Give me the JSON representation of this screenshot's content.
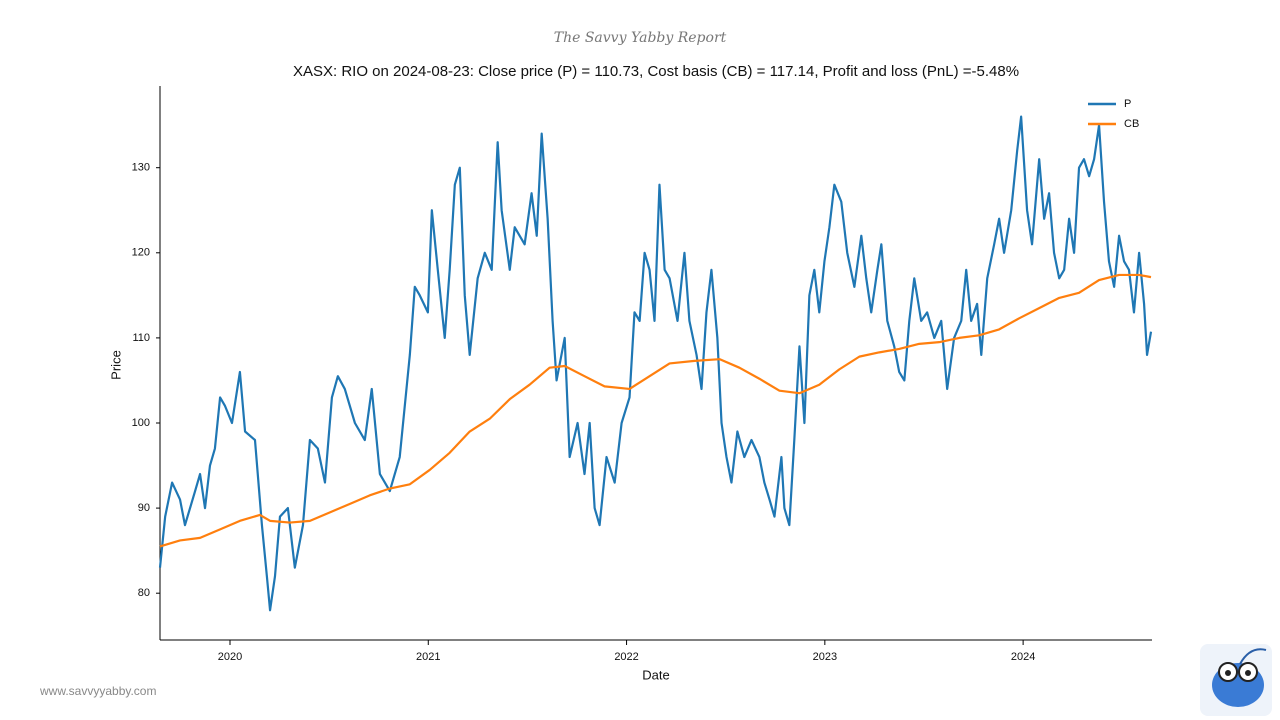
{
  "header": "The Savvy Yabby Report",
  "footer": "www.savvyyabby.com",
  "chart_data": {
    "type": "line",
    "title": "XASX: RIO on 2024-08-23: Close price (P) = 110.73, Cost basis (CB) = 117.14, Profit and loss (PnL) =-5.48%",
    "x_label": "Date",
    "y_label": "Price",
    "xlim": [
      2019.647,
      2024.65
    ],
    "ylim": [
      74.5,
      139.6
    ],
    "xticks": [
      2020,
      2021,
      2022,
      2023,
      2024
    ],
    "yticks": [
      80,
      90,
      100,
      110,
      120,
      130
    ],
    "legend": "upper right",
    "grid": false,
    "series": [
      {
        "name": "P",
        "color": "#1f77b4",
        "x": [
          2019.647,
          2019.673,
          2019.708,
          2019.748,
          2019.773,
          2019.824,
          2019.849,
          2019.874,
          2019.899,
          2019.924,
          2019.95,
          2019.975,
          2020.01,
          2020.05,
          2020.076,
          2020.126,
          2020.161,
          2020.186,
          2020.202,
          2020.227,
          2020.252,
          2020.292,
          2020.327,
          2020.368,
          2020.403,
          2020.443,
          2020.479,
          2020.514,
          2020.544,
          2020.579,
          2020.63,
          2020.68,
          2020.715,
          2020.756,
          2020.806,
          2020.856,
          2020.907,
          2020.932,
          2020.957,
          2020.998,
          2021.018,
          2021.048,
          2021.083,
          2021.108,
          2021.134,
          2021.159,
          2021.184,
          2021.209,
          2021.249,
          2021.285,
          2021.32,
          2021.35,
          2021.37,
          2021.411,
          2021.436,
          2021.486,
          2021.521,
          2021.547,
          2021.572,
          2021.602,
          2021.627,
          2021.647,
          2021.688,
          2021.713,
          2021.753,
          2021.788,
          2021.814,
          2021.839,
          2021.864,
          2021.899,
          2021.94,
          2021.975,
          2022.015,
          2022.04,
          2022.066,
          2022.091,
          2022.116,
          2022.141,
          2022.166,
          2022.192,
          2022.217,
          2022.257,
          2022.292,
          2022.317,
          2022.353,
          2022.378,
          2022.403,
          2022.428,
          2022.458,
          2022.479,
          2022.504,
          2022.529,
          2022.559,
          2022.594,
          2022.63,
          2022.67,
          2022.695,
          2022.721,
          2022.746,
          2022.781,
          2022.796,
          2022.821,
          2022.846,
          2022.872,
          2022.897,
          2022.922,
          2022.947,
          2022.972,
          2022.998,
          2023.023,
          2023.048,
          2023.083,
          2023.113,
          2023.149,
          2023.184,
          2023.209,
          2023.234,
          2023.265,
          2023.285,
          2023.315,
          2023.35,
          2023.375,
          2023.401,
          2023.426,
          2023.451,
          2023.486,
          2023.516,
          2023.552,
          2023.587,
          2023.617,
          2023.652,
          2023.688,
          2023.713,
          2023.738,
          2023.768,
          2023.789,
          2023.819,
          2023.854,
          2023.879,
          2023.904,
          2023.94,
          2023.97,
          2023.99,
          2024.02,
          2024.045,
          2024.081,
          2024.106,
          2024.131,
          2024.156,
          2024.182,
          2024.207,
          2024.232,
          2024.257,
          2024.282,
          2024.307,
          2024.333,
          2024.358,
          2024.383,
          2024.408,
          2024.433,
          2024.459,
          2024.484,
          2024.509,
          2024.534,
          2024.559,
          2024.585,
          2024.61,
          2024.625,
          2024.645
        ],
        "values": [
          83,
          89,
          93,
          91,
          88,
          92,
          94,
          90,
          95,
          97,
          103,
          102,
          100,
          106,
          99,
          98,
          88,
          82,
          78,
          82,
          89,
          90,
          83,
          88,
          98,
          97,
          93,
          103,
          105.5,
          104,
          100,
          98,
          104,
          94,
          92,
          96,
          108,
          116,
          115,
          113,
          125,
          118,
          110,
          118,
          128,
          130,
          115,
          108,
          117,
          120,
          118,
          133,
          125,
          118,
          123,
          121,
          127,
          122,
          134,
          124,
          112,
          105,
          110,
          96,
          100,
          94,
          100,
          90,
          88,
          96,
          93,
          100,
          103,
          113,
          112,
          120,
          118,
          112,
          128,
          118,
          117,
          112,
          120,
          112,
          108,
          104,
          113,
          118,
          110,
          100,
          96,
          93,
          99,
          96,
          98,
          96,
          93,
          91,
          89,
          96,
          90,
          88,
          98,
          109,
          100,
          115,
          118,
          113,
          119,
          123,
          128,
          126,
          120,
          116,
          122,
          117,
          113,
          118,
          121,
          112,
          109,
          106,
          105,
          112,
          117,
          112,
          113,
          110,
          112,
          104,
          110,
          112,
          118,
          112,
          114,
          108,
          117,
          121,
          124,
          120,
          125,
          132,
          136,
          125,
          121,
          131,
          124,
          127,
          120,
          117,
          118,
          124,
          120,
          130,
          131,
          129,
          131,
          135,
          126,
          119,
          116,
          122,
          119,
          118,
          113,
          120,
          114,
          108,
          110.73
        ]
      },
      {
        "name": "CB",
        "color": "#ff7f0e",
        "x": [
          2019.647,
          2019.748,
          2019.849,
          2019.95,
          2020.05,
          2020.151,
          2020.202,
          2020.302,
          2020.403,
          2020.504,
          2020.605,
          2020.705,
          2020.806,
          2020.907,
          2021.008,
          2021.108,
          2021.209,
          2021.31,
          2021.411,
          2021.511,
          2021.612,
          2021.688,
          2021.788,
          2021.889,
          2022.015,
          2022.116,
          2022.217,
          2022.343,
          2022.469,
          2022.569,
          2022.67,
          2022.771,
          2022.872,
          2022.972,
          2023.073,
          2023.174,
          2023.275,
          2023.375,
          2023.476,
          2023.577,
          2023.678,
          2023.778,
          2023.879,
          2023.98,
          2024.081,
          2024.182,
          2024.282,
          2024.383,
          2024.484,
          2024.585,
          2024.645
        ],
        "values": [
          85.5,
          86.2,
          86.5,
          87.5,
          88.5,
          89.2,
          88.5,
          88.3,
          88.5,
          89.5,
          90.5,
          91.5,
          92.3,
          92.8,
          94.5,
          96.5,
          99,
          100.5,
          102.8,
          104.5,
          106.5,
          106.7,
          105.5,
          104.3,
          104,
          105.5,
          107,
          107.3,
          107.5,
          106.5,
          105.2,
          103.8,
          103.5,
          104.5,
          106.3,
          107.8,
          108.3,
          108.7,
          109.3,
          109.5,
          110,
          110.3,
          111,
          112.3,
          113.5,
          114.7,
          115.3,
          116.8,
          117.4,
          117.4,
          117.14
        ]
      }
    ]
  }
}
